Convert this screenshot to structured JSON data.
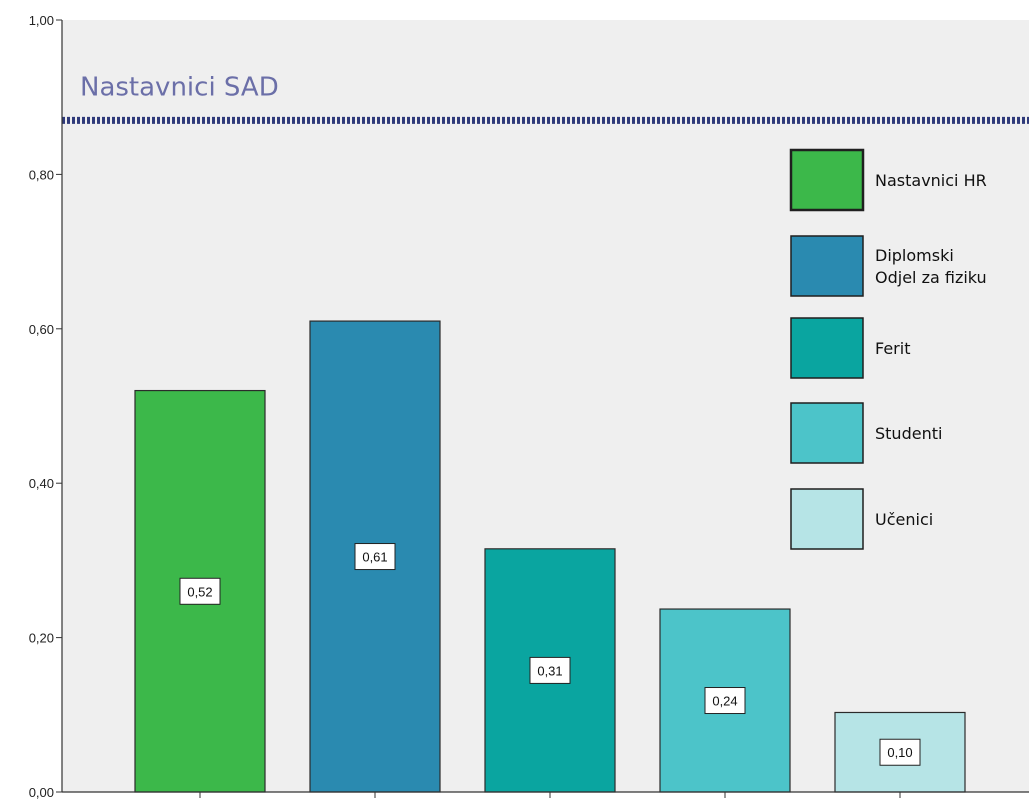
{
  "chart_data": {
    "type": "bar",
    "title": "",
    "xlabel": "",
    "ylabel": "",
    "ylim": [
      0,
      1
    ],
    "yticks": [
      "0,00",
      "0,20",
      "0,40",
      "0,60",
      "0,80",
      "1,00"
    ],
    "ytick_values": [
      0,
      0.2,
      0.4,
      0.6,
      0.8,
      1.0
    ],
    "grid": false,
    "legend_position": "top-right",
    "categories": [
      "Nastavnici HR",
      "Diplomski Odjel za fiziku",
      "Ferit",
      "Studenti",
      "Učenici"
    ],
    "values": [
      0.52,
      0.61,
      0.315,
      0.237,
      0.103
    ],
    "value_labels": [
      "0,52",
      "0,61",
      "0,31",
      "0,24",
      "0,10"
    ],
    "colors": [
      "#3cb84a",
      "#2a8ab0",
      "#0aa5a0",
      "#4cc4c9",
      "#b6e4e6"
    ],
    "legend": [
      {
        "lines": [
          "Nastavnici HR"
        ],
        "color": "#3cb84a"
      },
      {
        "lines": [
          "Diplomski",
          "Odjel za fiziku"
        ],
        "color": "#2a8ab0"
      },
      {
        "lines": [
          "Ferit"
        ],
        "color": "#0aa5a0"
      },
      {
        "lines": [
          "Studenti"
        ],
        "color": "#4cc4c9"
      },
      {
        "lines": [
          "Učenici"
        ],
        "color": "#b6e4e6"
      }
    ],
    "reference_line": {
      "label": "Nastavnici SAD",
      "value": 0.87,
      "color": "#2f3a7a",
      "label_color": "#6b6fa8"
    },
    "background_color": "#efefef"
  }
}
